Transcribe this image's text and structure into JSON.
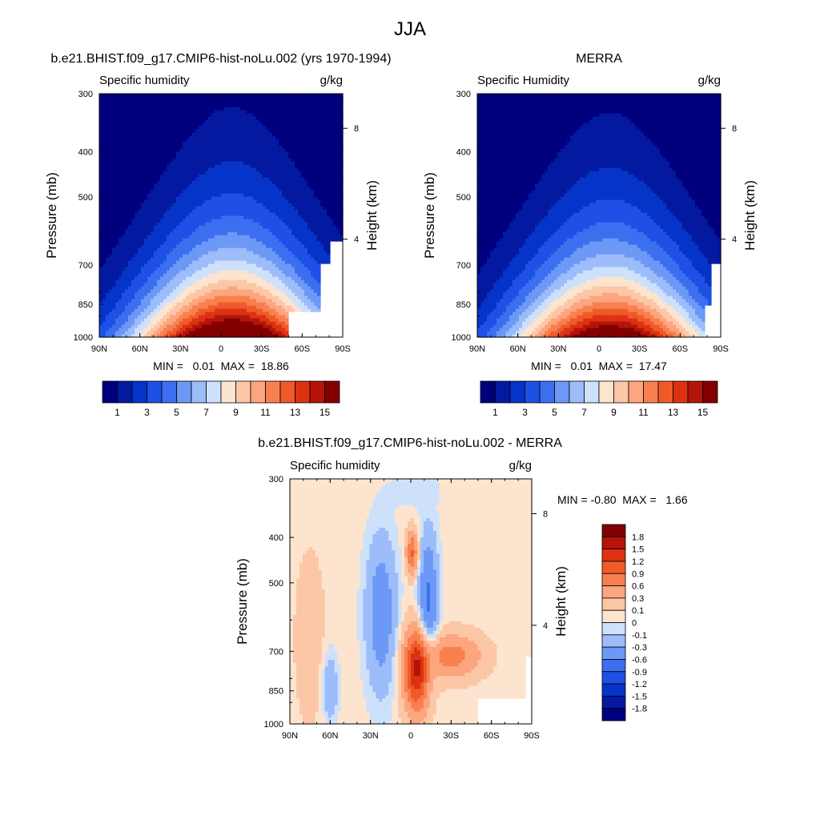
{
  "figure": {
    "title": "JJA",
    "panel_titles": [
      "b.e21.BHIST.f09_g17.CMIP6-hist-noLu.002 (yrs 1970-1994)",
      "MERRA",
      "b.e21.BHIST.f09_g17.CMIP6-hist-noLu.002 - MERRA"
    ]
  },
  "colorscales": {
    "absolute": {
      "colors": [
        "#00007f",
        "#0219a0",
        "#0634c8",
        "#1e50e6",
        "#3c6ef0",
        "#6c98f6",
        "#9cbcfa",
        "#cde1fb",
        "#fde4cf",
        "#fcc7a7",
        "#fca57e",
        "#f8804f",
        "#f05a2a",
        "#dc3212",
        "#b4140a",
        "#820000"
      ],
      "labels": [
        "1",
        "3",
        "5",
        "7",
        "9",
        "11",
        "13",
        "15"
      ]
    },
    "difference": {
      "colors": [
        "#00007f",
        "#0219a0",
        "#0634c8",
        "#1e50e6",
        "#3c6ef0",
        "#6c98f6",
        "#9cbcfa",
        "#cde1fb",
        "#fde4cf",
        "#fcc7a7",
        "#fca57e",
        "#f8804f",
        "#f05a2a",
        "#dc3212",
        "#b4140a",
        "#820000"
      ],
      "labels": [
        "1.8",
        "1.5",
        "1.2",
        "0.9",
        "0.6",
        "0.3",
        "0.1",
        "0",
        "-0.1",
        "-0.3",
        "-0.6",
        "-0.9",
        "-1.2",
        "-1.5",
        "-1.8"
      ]
    }
  },
  "chart_data": [
    {
      "type": "heatmap",
      "title": "b.e21.BHIST.f09_g17.CMIP6-hist-noLu.002 (yrs 1970-1994)",
      "variable": "Specific humidity",
      "units": "g/kg",
      "xlabel": "",
      "ylabel": "Pressure (mb)",
      "y2label": "Height (km)",
      "x_ticks": [
        "90N",
        "60N",
        "30N",
        "0",
        "30S",
        "60S",
        "90S"
      ],
      "y_ticks": [
        "300",
        "400",
        "500",
        "700",
        "850",
        "1000"
      ],
      "y2_ticks": [
        "8",
        "4"
      ],
      "ylim": [
        1000,
        300
      ],
      "y_scale": "log",
      "contour_levels": [
        0,
        1,
        2,
        3,
        4,
        5,
        6,
        7,
        8,
        9,
        10,
        11,
        12,
        13,
        14,
        15
      ],
      "min": 0.01,
      "max": 18.86,
      "stats_text": "MIN =   0.01  MAX =  18.86",
      "peak_lat": -8,
      "peak_value": 18.86,
      "missing_region": "south polar low levels below ~870 mb",
      "colorbar_labels": [
        "1",
        "3",
        "5",
        "7",
        "9",
        "11",
        "13",
        "15"
      ]
    },
    {
      "type": "heatmap",
      "title": "MERRA",
      "variable": "Specific Humidity",
      "units": "g/kg",
      "xlabel": "",
      "ylabel": "Pressure (mb)",
      "y2label": "Height (km)",
      "x_ticks": [
        "90N",
        "60N",
        "30N",
        "0",
        "30S",
        "60S",
        "90S"
      ],
      "y_ticks": [
        "300",
        "400",
        "500",
        "700",
        "850",
        "1000"
      ],
      "y2_ticks": [
        "8",
        "4"
      ],
      "ylim": [
        1000,
        300
      ],
      "y_scale": "log",
      "contour_levels": [
        0,
        1,
        2,
        3,
        4,
        5,
        6,
        7,
        8,
        9,
        10,
        11,
        12,
        13,
        14,
        15
      ],
      "min": 0.01,
      "max": 17.47,
      "stats_text": "MIN =   0.01  MAX =  17.47",
      "peak_lat": -8,
      "peak_value": 17.47,
      "colorbar_labels": [
        "1",
        "3",
        "5",
        "7",
        "9",
        "11",
        "13",
        "15"
      ]
    },
    {
      "type": "heatmap",
      "title": "b.e21.BHIST.f09_g17.CMIP6-hist-noLu.002 - MERRA",
      "variable": "Specific humidity",
      "units": "g/kg",
      "xlabel": "",
      "ylabel": "Pressure (mb)",
      "y2label": "Height (km)",
      "x_ticks": [
        "90N",
        "60N",
        "30N",
        "0",
        "30S",
        "60S",
        "90S"
      ],
      "y_ticks": [
        "300",
        "400",
        "500",
        "700",
        "850",
        "1000"
      ],
      "y2_ticks": [
        "8",
        "4"
      ],
      "ylim": [
        1000,
        300
      ],
      "y_scale": "log",
      "contour_levels": [
        -1.8,
        -1.5,
        -1.2,
        -0.9,
        -0.6,
        -0.3,
        -0.1,
        0,
        0.1,
        0.3,
        0.6,
        0.9,
        1.2,
        1.5,
        1.8
      ],
      "min": -0.8,
      "max": 1.66,
      "stats_text": "MIN = -0.80  MAX =   1.66",
      "features": [
        {
          "lat": -5,
          "p": 850,
          "value": 1.66
        },
        {
          "lat": 30,
          "p": 720,
          "value": -0.6
        },
        {
          "lat": -15,
          "p": 680,
          "value": -0.8
        },
        {
          "lat": 0,
          "p": 500,
          "value": 0.9
        }
      ],
      "colorbar_labels": [
        "1.8",
        "1.5",
        "1.2",
        "0.9",
        "0.6",
        "0.3",
        "0.1",
        "0",
        "-0.1",
        "-0.3",
        "-0.6",
        "-0.9",
        "-1.2",
        "-1.5",
        "-1.8"
      ]
    }
  ]
}
